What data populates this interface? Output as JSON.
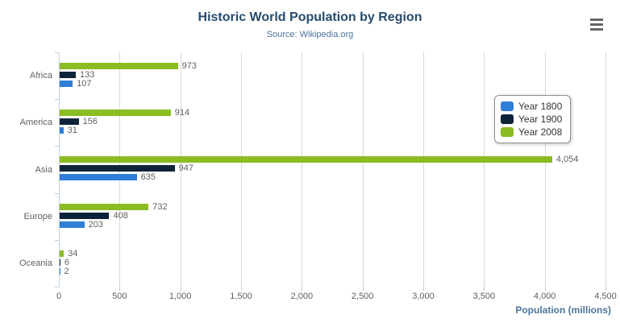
{
  "chart_data": {
    "type": "bar",
    "orientation": "horizontal",
    "title": "Historic World Population by Region",
    "subtitle": "Source: Wikipedia.org",
    "categories": [
      "Africa",
      "America",
      "Asia",
      "Europe",
      "Oceania"
    ],
    "series": [
      {
        "name": "Year 1800",
        "color": "#2f7ed8",
        "values": [
          107,
          31,
          635,
          203,
          2
        ]
      },
      {
        "name": "Year 1900",
        "color": "#0d233a",
        "values": [
          133,
          156,
          947,
          408,
          6
        ]
      },
      {
        "name": "Year 2008",
        "color": "#8bbc21",
        "values": [
          973,
          914,
          4054,
          732,
          34
        ]
      }
    ],
    "bar_order_top_to_bottom": [
      "Year 2008",
      "Year 1900",
      "Year 1800"
    ],
    "data_labels": {
      "Africa": {
        "Year 2008": "973",
        "Year 1900": "133",
        "Year 1800": "107"
      },
      "America": {
        "Year 2008": "914",
        "Year 1900": "156",
        "Year 1800": "31"
      },
      "Asia": {
        "Year 2008": "4,054",
        "Year 1900": "947",
        "Year 1800": "635"
      },
      "Europe": {
        "Year 2008": "732",
        "Year 1900": "408",
        "Year 1800": "203"
      },
      "Oceania": {
        "Year 2008": "34",
        "Year 1900": "6",
        "Year 1800": "2"
      }
    },
    "xlabel": "Population (millions)",
    "xlim": [
      0,
      4500
    ],
    "x_ticks": [
      "0",
      "500",
      "1,000",
      "1,500",
      "2,000",
      "2,500",
      "3,000",
      "3,500",
      "4,000",
      "4,500"
    ],
    "grid": true,
    "legend_position": "inside-right"
  },
  "colors": {
    "title": "#274b6d",
    "subtitle": "#4d759e",
    "axis_title": "#4d759e",
    "labels": "#606060",
    "gridline": "#d8d8d8",
    "axis_line": "#c0d0e0",
    "legend_border": "#909090",
    "menu_icon": "#666666"
  },
  "icons": {
    "context_menu": "hamburger-menu-icon"
  }
}
